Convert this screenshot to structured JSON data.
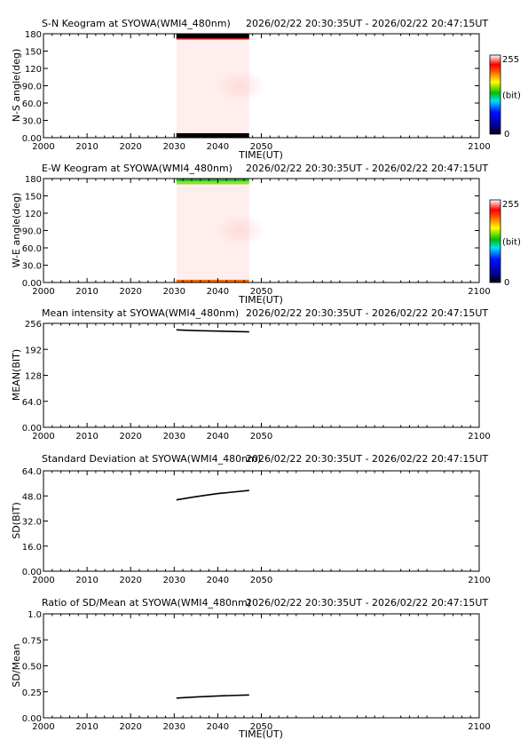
{
  "time_range": "2026/02/22 20:30:35UT - 2026/02/22 20:47:15UT",
  "x_axis": {
    "label": "TIME(UT)",
    "range": [
      2000,
      2100
    ],
    "ticks": [
      "2000",
      "2010",
      "2020",
      "2030",
      "2040",
      "2050",
      "2100"
    ]
  },
  "colorbar": {
    "max_label": "255",
    "unit_label": "(bit)",
    "min_label": "0"
  },
  "chart_data": [
    {
      "type": "heatmap",
      "title": "S-N Keogram at SYOWA(WMI4_480nm)",
      "ylabel": "N-S angle(deg)",
      "ylim": [
        0,
        180
      ],
      "yticks": [
        "0.00",
        "30.0",
        "60.0",
        "90.0",
        "120",
        "150",
        "180"
      ],
      "data_x_range": [
        2030.5,
        2047.2
      ],
      "bands": [
        {
          "y_from": 0,
          "y_to": 8,
          "color": "#000000"
        },
        {
          "y_from": 8,
          "y_to": 170,
          "color": "#ffeeee"
        },
        {
          "y_from": 170,
          "y_to": 172,
          "color": "#ff0000"
        },
        {
          "y_from": 172,
          "y_to": 180,
          "color": "#000000"
        }
      ],
      "colorbar": {
        "range": [
          0,
          255
        ],
        "unit": "(bit)"
      }
    },
    {
      "type": "heatmap",
      "title": "E-W Keogram at SYOWA(WMI4_480nm)",
      "ylabel": "W-E angle(deg)",
      "ylim": [
        0,
        180
      ],
      "yticks": [
        "0.00",
        "30.0",
        "60.0",
        "90.0",
        "120",
        "150",
        "180"
      ],
      "data_x_range": [
        2030.5,
        2047.2
      ],
      "bands": [
        {
          "y_from": 0,
          "y_to": 5,
          "color": "#ff6a00"
        },
        {
          "y_from": 5,
          "y_to": 170,
          "color": "#ffeeee"
        },
        {
          "y_from": 170,
          "y_to": 175,
          "color": "#90e030"
        },
        {
          "y_from": 175,
          "y_to": 180,
          "color": "#22bb22"
        }
      ],
      "colorbar": {
        "range": [
          0,
          255
        ],
        "unit": "(bit)"
      }
    },
    {
      "type": "line",
      "title": "Mean intensity at SYOWA(WMI4_480nm)",
      "ylabel": "MEAN(BIT)",
      "ylim": [
        0,
        256
      ],
      "yticks": [
        "0.00",
        "64.0",
        "128",
        "192",
        "256"
      ],
      "series": [
        {
          "x": [
            2030.5,
            2035,
            2040,
            2047.2
          ],
          "y": [
            240,
            238,
            237,
            235
          ]
        }
      ]
    },
    {
      "type": "line",
      "title": "Standard Deviation at SYOWA(WMI4_480nm)",
      "ylabel": "SD(BIT)",
      "ylim": [
        0,
        64
      ],
      "yticks": [
        "0.00",
        "16.0",
        "32.0",
        "48.0",
        "64.0"
      ],
      "series": [
        {
          "x": [
            2030.5,
            2035,
            2040,
            2047.2
          ],
          "y": [
            45.5,
            47.5,
            49.5,
            51.5
          ]
        }
      ]
    },
    {
      "type": "line",
      "title": "Ratio of SD/Mean at SYOWA(WMI4_480nm)",
      "ylabel": "SD/Mean",
      "ylim": [
        0,
        1
      ],
      "yticks": [
        "0.00",
        "0.25",
        "0.50",
        "0.75",
        "1.0"
      ],
      "series": [
        {
          "x": [
            2030.5,
            2035,
            2040,
            2047.2
          ],
          "y": [
            0.19,
            0.2,
            0.21,
            0.22
          ]
        }
      ]
    }
  ]
}
